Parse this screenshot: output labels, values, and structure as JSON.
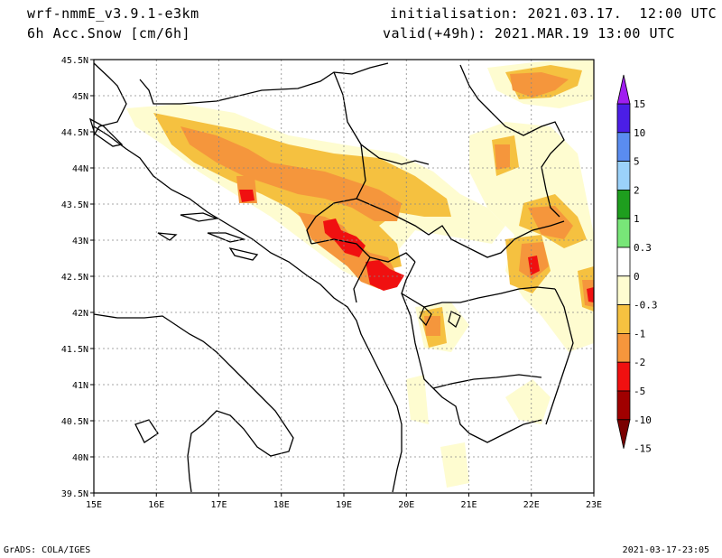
{
  "header": {
    "model": "wrf-nmmE_v3.9.1-e3km",
    "field": "6h Acc.Snow [cm/6h]",
    "init": "initialisation: 2021.03.17.  12:00 UTC",
    "valid": "valid(+49h): 2021.MAR.19 13:00 UTC"
  },
  "footer": {
    "credit": "GrADS: COLA/IGES",
    "timestamp": "2021-03-17-23:05"
  },
  "map": {
    "lon_labels": [
      "15E",
      "16E",
      "17E",
      "18E",
      "19E",
      "20E",
      "21E",
      "22E",
      "23E"
    ],
    "lat_labels": [
      "39.5N",
      "40N",
      "40.5N",
      "41N",
      "41.5N",
      "42N",
      "42.5N",
      "43N",
      "43.5N",
      "44N",
      "44.5N",
      "45N",
      "45.5N"
    ]
  },
  "colorbar": {
    "labels": [
      "15",
      "10",
      "5",
      "2",
      "1",
      "0.3",
      "0",
      "-0.3",
      "-1",
      "-2",
      "-5",
      "-10",
      "-15"
    ],
    "colors": [
      "#4b1ee6",
      "#5a8cf0",
      "#9bd2fa",
      "#1e9e1e",
      "#78e678",
      "#ffffff",
      "#fefcd0",
      "#f5c140",
      "#f5963c",
      "#f01010",
      "#a00000"
    ],
    "top_arrow_color": "#a01ef0",
    "bottom_arrow_color": "#7a0000"
  },
  "legend_colors": {
    "light": "#fefcd0",
    "yellow": "#f5c140",
    "orange": "#f5963c",
    "red": "#f01010"
  }
}
